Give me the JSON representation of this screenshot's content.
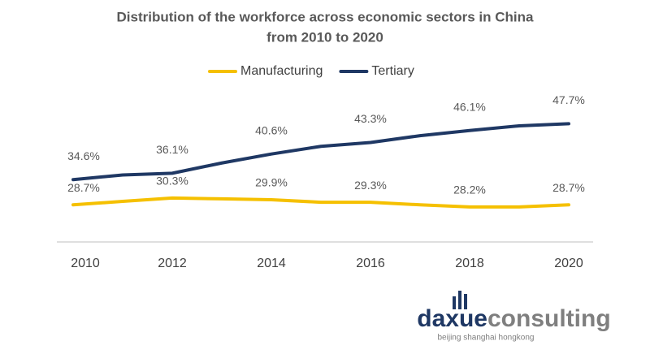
{
  "chart_data": {
    "type": "line",
    "title": [
      "Distribution of the workforce across economic sectors in China",
      "from 2010 to 2020"
    ],
    "x": [
      2010,
      2011,
      2012,
      2013,
      2014,
      2015,
      2016,
      2017,
      2018,
      2019,
      2020
    ],
    "xlim": [
      2010,
      2020
    ],
    "xticks": [
      2010,
      2012,
      2014,
      2016,
      2018,
      2020
    ],
    "ylim": [
      20,
      55
    ],
    "legend": "top",
    "series": [
      {
        "name": "Manufacturing",
        "color": "#f5c000",
        "values": [
          28.7,
          29.5,
          30.3,
          30.1,
          29.9,
          29.3,
          29.3,
          28.7,
          28.2,
          28.2,
          28.7
        ],
        "value_labels": [
          "28.7%",
          null,
          "30.3%",
          null,
          "29.9%",
          null,
          "29.3%",
          null,
          "28.2%",
          null,
          "28.7%"
        ]
      },
      {
        "name": "Tertiary",
        "color": "#1f3864",
        "values": [
          34.6,
          35.7,
          36.1,
          38.5,
          40.6,
          42.4,
          43.3,
          44.9,
          46.1,
          47.2,
          47.7
        ],
        "value_labels": [
          "34.6%",
          null,
          "36.1%",
          null,
          "40.6%",
          null,
          "43.3%",
          null,
          "46.1%",
          null,
          "47.7%"
        ]
      }
    ]
  },
  "logo": {
    "name_dark": "daxue",
    "name_light": "consulting",
    "tagline": "beijing shanghai hongkong"
  }
}
